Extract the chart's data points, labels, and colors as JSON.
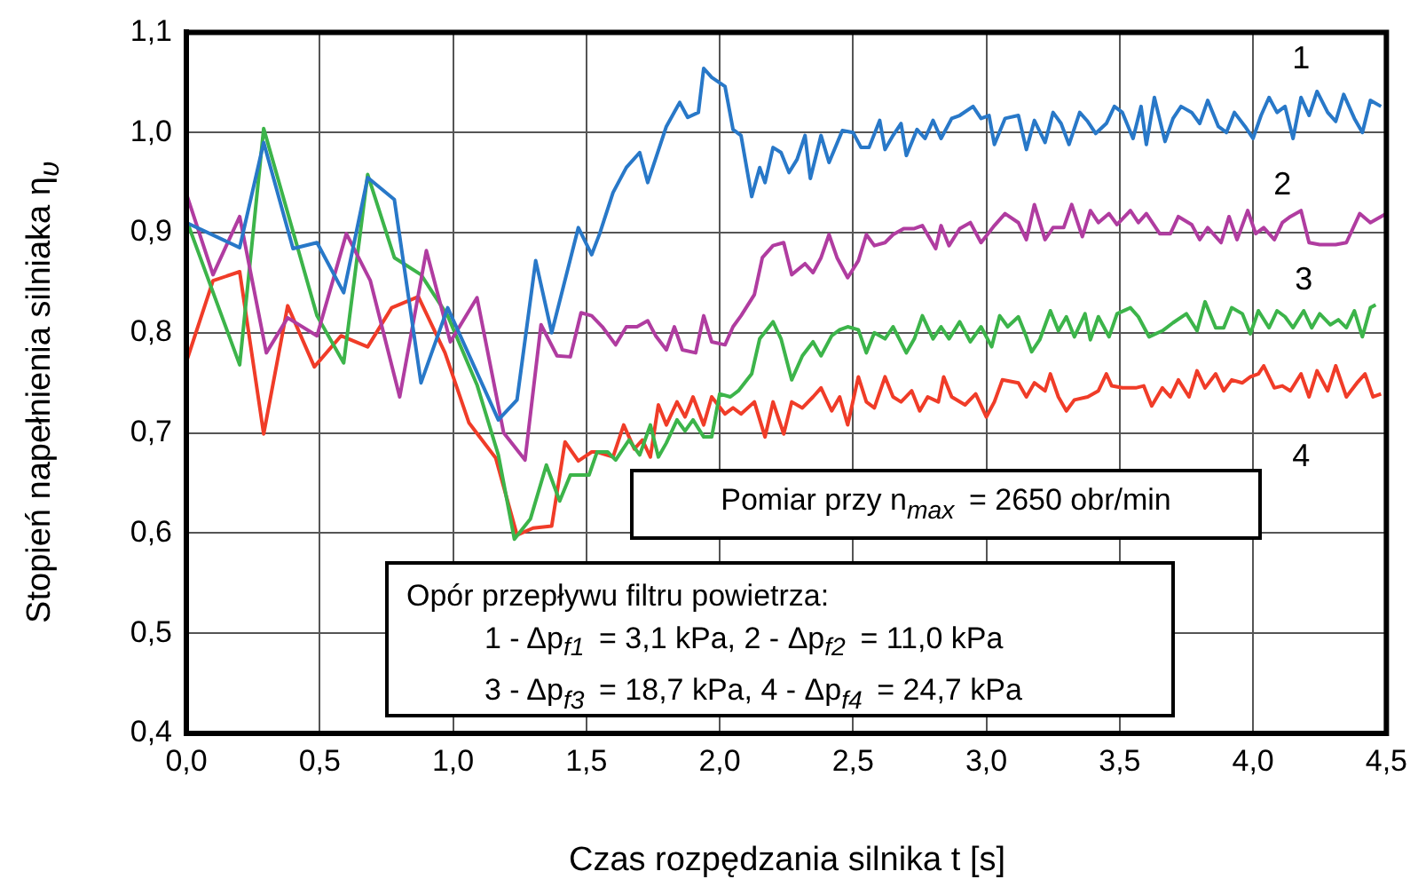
{
  "chart_data": {
    "type": "line",
    "xlabel": "Czas rozpędzania silnika t [s]",
    "ylabel": "Stopień napełnienia silniaka η$_{υ}$",
    "xlim": [
      0,
      4.5
    ],
    "ylim": [
      0.4,
      1.1
    ],
    "xticks": [
      {
        "value": 0,
        "label": "0,0"
      },
      {
        "value": 0.5,
        "label": "0,5"
      },
      {
        "value": 1,
        "label": "1,0"
      },
      {
        "value": 1.5,
        "label": "1,5"
      },
      {
        "value": 2,
        "label": "2,0"
      },
      {
        "value": 2.5,
        "label": "2,5"
      },
      {
        "value": 3,
        "label": "3,0"
      },
      {
        "value": 3.5,
        "label": "3,5"
      },
      {
        "value": 4,
        "label": "4,0"
      },
      {
        "value": 4.5,
        "label": "4,5"
      }
    ],
    "yticks": [
      {
        "value": 0.4,
        "label": "0,4"
      },
      {
        "value": 0.5,
        "label": "0,5"
      },
      {
        "value": 0.6,
        "label": "0,6"
      },
      {
        "value": 0.7,
        "label": "0,7"
      },
      {
        "value": 0.8,
        "label": "0,8"
      },
      {
        "value": 0.9,
        "label": "0,9"
      },
      {
        "value": 1,
        "label": "1,0"
      },
      {
        "value": 1.1,
        "label": "1,1"
      }
    ],
    "grid": true,
    "legend": false,
    "marker": "none",
    "line_style": "solid",
    "series": [
      {
        "name": "1",
        "color": "#2878c8",
        "x": [
          0,
          0.2,
          0.29,
          0.4,
          0.49,
          0.59,
          0.68,
          0.78,
          0.88,
          0.98,
          1.17,
          1.24,
          1.31,
          1.37,
          1.47,
          1.52,
          1.55,
          1.6,
          1.65,
          1.7,
          1.73,
          1.8,
          1.85,
          1.88,
          1.92,
          1.94,
          1.97,
          2.02,
          2.05,
          2.08,
          2.12,
          2.15,
          2.17,
          2.2,
          2.23,
          2.26,
          2.29,
          2.32,
          2.34,
          2.38,
          2.41,
          2.46,
          2.5,
          2.53,
          2.56,
          2.6,
          2.62,
          2.65,
          2.68,
          2.7,
          2.74,
          2.77,
          2.8,
          2.83,
          2.87,
          2.9,
          2.95,
          2.98,
          3.01,
          3.03,
          3.07,
          3.12,
          3.15,
          3.18,
          3.22,
          3.25,
          3.28,
          3.31,
          3.35,
          3.38,
          3.41,
          3.45,
          3.48,
          3.51,
          3.55,
          3.58,
          3.6,
          3.63,
          3.67,
          3.7,
          3.73,
          3.77,
          3.8,
          3.83,
          3.87,
          3.9,
          3.93,
          3.97,
          4.0,
          4.03,
          4.06,
          4.09,
          4.12,
          4.15,
          4.18,
          4.21,
          4.24,
          4.28,
          4.31,
          4.34,
          4.38,
          4.41,
          4.44,
          4.48
        ],
        "values": [
          0.91,
          0.885,
          0.99,
          0.884,
          0.89,
          0.84,
          0.955,
          0.933,
          0.75,
          0.825,
          0.713,
          0.733,
          0.872,
          0.8,
          0.905,
          0.878,
          0.899,
          0.94,
          0.965,
          0.98,
          0.95,
          1.006,
          1.03,
          1.015,
          1.02,
          1.064,
          1.055,
          1.046,
          1.003,
          0.997,
          0.936,
          0.965,
          0.95,
          0.985,
          0.98,
          0.96,
          0.973,
          0.997,
          0.954,
          0.997,
          0.97,
          1.002,
          1.0,
          0.985,
          0.985,
          1.012,
          0.983,
          0.997,
          1.009,
          0.977,
          1.003,
          0.994,
          1.012,
          0.994,
          1.014,
          1.017,
          1.026,
          1.014,
          1.017,
          0.988,
          1.014,
          1.017,
          0.983,
          1.012,
          0.99,
          1.02,
          1.009,
          0.988,
          1.02,
          1.011,
          0.999,
          1.009,
          1.026,
          1.02,
          0.994,
          1.026,
          0.988,
          1.035,
          0.991,
          1.014,
          1.026,
          1.02,
          1.009,
          1.032,
          1.006,
          1.0,
          1.02,
          1.006,
          0.994,
          1.017,
          1.035,
          1.02,
          1.026,
          0.994,
          1.035,
          1.017,
          1.041,
          1.02,
          1.011,
          1.038,
          1.014,
          1.0,
          1.032,
          1.026
        ]
      },
      {
        "name": "2",
        "color": "#b03ca0",
        "x": [
          0,
          0.1,
          0.2,
          0.3,
          0.38,
          0.49,
          0.6,
          0.69,
          0.8,
          0.9,
          0.99,
          1.09,
          1.19,
          1.27,
          1.33,
          1.39,
          1.44,
          1.48,
          1.52,
          1.56,
          1.61,
          1.65,
          1.69,
          1.73,
          1.76,
          1.8,
          1.83,
          1.86,
          1.91,
          1.94,
          1.97,
          2.02,
          2.05,
          2.08,
          2.13,
          2.16,
          2.2,
          2.24,
          2.27,
          2.32,
          2.35,
          2.38,
          2.41,
          2.44,
          2.48,
          2.52,
          2.55,
          2.58,
          2.62,
          2.65,
          2.69,
          2.73,
          2.76,
          2.81,
          2.83,
          2.86,
          2.9,
          2.94,
          2.98,
          3.03,
          3.07,
          3.12,
          3.15,
          3.18,
          3.22,
          3.25,
          3.29,
          3.32,
          3.36,
          3.39,
          3.42,
          3.46,
          3.49,
          3.54,
          3.57,
          3.6,
          3.65,
          3.69,
          3.72,
          3.77,
          3.8,
          3.83,
          3.88,
          3.91,
          3.94,
          3.98,
          4.01,
          4.04,
          4.08,
          4.11,
          4.14,
          4.18,
          4.21,
          4.25,
          4.31,
          4.35,
          4.4,
          4.44,
          4.5
        ],
        "values": [
          0.939,
          0.858,
          0.916,
          0.78,
          0.815,
          0.797,
          0.899,
          0.852,
          0.736,
          0.882,
          0.791,
          0.835,
          0.7,
          0.673,
          0.808,
          0.777,
          0.776,
          0.82,
          0.817,
          0.806,
          0.788,
          0.806,
          0.806,
          0.812,
          0.797,
          0.783,
          0.806,
          0.783,
          0.78,
          0.817,
          0.791,
          0.788,
          0.806,
          0.817,
          0.838,
          0.875,
          0.887,
          0.89,
          0.858,
          0.869,
          0.86,
          0.875,
          0.898,
          0.875,
          0.855,
          0.872,
          0.898,
          0.887,
          0.89,
          0.898,
          0.904,
          0.904,
          0.907,
          0.884,
          0.907,
          0.887,
          0.904,
          0.91,
          0.89,
          0.907,
          0.919,
          0.91,
          0.893,
          0.928,
          0.893,
          0.905,
          0.905,
          0.928,
          0.896,
          0.922,
          0.91,
          0.919,
          0.908,
          0.922,
          0.91,
          0.919,
          0.899,
          0.899,
          0.916,
          0.908,
          0.893,
          0.905,
          0.89,
          0.916,
          0.893,
          0.922,
          0.899,
          0.905,
          0.893,
          0.91,
          0.916,
          0.922,
          0.89,
          0.888,
          0.888,
          0.89,
          0.919,
          0.91,
          0.919
        ]
      },
      {
        "name": "3",
        "color": "#3cb44a",
        "x": [
          0,
          0.2,
          0.29,
          0.49,
          0.59,
          0.68,
          0.78,
          0.88,
          0.98,
          1.09,
          1.17,
          1.23,
          1.29,
          1.35,
          1.4,
          1.44,
          1.49,
          1.51,
          1.54,
          1.58,
          1.61,
          1.66,
          1.7,
          1.72,
          1.74,
          1.77,
          1.8,
          1.84,
          1.87,
          1.9,
          1.94,
          1.97,
          2.0,
          2.04,
          2.07,
          2.12,
          2.15,
          2.2,
          2.23,
          2.27,
          2.31,
          2.35,
          2.38,
          2.42,
          2.45,
          2.48,
          2.52,
          2.55,
          2.58,
          2.62,
          2.65,
          2.7,
          2.73,
          2.76,
          2.8,
          2.83,
          2.86,
          2.9,
          2.94,
          2.98,
          3.02,
          3.05,
          3.08,
          3.12,
          3.15,
          3.17,
          3.2,
          3.24,
          3.27,
          3.3,
          3.33,
          3.37,
          3.39,
          3.42,
          3.46,
          3.49,
          3.54,
          3.57,
          3.61,
          3.66,
          3.7,
          3.75,
          3.79,
          3.82,
          3.86,
          3.89,
          3.92,
          3.96,
          3.99,
          4.02,
          4.06,
          4.09,
          4.12,
          4.15,
          4.19,
          4.22,
          4.25,
          4.29,
          4.32,
          4.35,
          4.38,
          4.41,
          4.44,
          4.46
        ],
        "values": [
          0.913,
          0.768,
          1.004,
          0.817,
          0.77,
          0.958,
          0.875,
          0.858,
          0.817,
          0.748,
          0.678,
          0.594,
          0.614,
          0.668,
          0.632,
          0.658,
          0.658,
          0.658,
          0.681,
          0.681,
          0.673,
          0.693,
          0.678,
          0.693,
          0.708,
          0.676,
          0.69,
          0.713,
          0.702,
          0.713,
          0.696,
          0.696,
          0.739,
          0.736,
          0.742,
          0.759,
          0.794,
          0.811,
          0.794,
          0.753,
          0.777,
          0.791,
          0.777,
          0.797,
          0.803,
          0.806,
          0.803,
          0.78,
          0.8,
          0.794,
          0.806,
          0.78,
          0.794,
          0.817,
          0.794,
          0.806,
          0.794,
          0.811,
          0.791,
          0.806,
          0.786,
          0.817,
          0.806,
          0.816,
          0.796,
          0.781,
          0.793,
          0.822,
          0.802,
          0.816,
          0.796,
          0.819,
          0.793,
          0.816,
          0.796,
          0.819,
          0.825,
          0.816,
          0.796,
          0.802,
          0.81,
          0.819,
          0.802,
          0.831,
          0.805,
          0.805,
          0.825,
          0.819,
          0.799,
          0.822,
          0.805,
          0.822,
          0.816,
          0.805,
          0.822,
          0.805,
          0.819,
          0.808,
          0.813,
          0.805,
          0.822,
          0.796,
          0.825,
          0.828
        ]
      },
      {
        "name": "4",
        "color": "#f03c28",
        "x": [
          0,
          0.1,
          0.2,
          0.29,
          0.38,
          0.48,
          0.58,
          0.68,
          0.77,
          0.87,
          0.97,
          1.06,
          1.16,
          1.24,
          1.3,
          1.37,
          1.42,
          1.47,
          1.52,
          1.54,
          1.6,
          1.64,
          1.68,
          1.71,
          1.74,
          1.77,
          1.8,
          1.84,
          1.87,
          1.9,
          1.94,
          1.97,
          2.02,
          2.05,
          2.08,
          2.13,
          2.17,
          2.2,
          2.24,
          2.27,
          2.31,
          2.35,
          2.38,
          2.42,
          2.45,
          2.48,
          2.52,
          2.55,
          2.58,
          2.62,
          2.65,
          2.68,
          2.72,
          2.75,
          2.78,
          2.82,
          2.84,
          2.87,
          2.92,
          2.96,
          3.0,
          3.03,
          3.06,
          3.12,
          3.15,
          3.18,
          3.22,
          3.24,
          3.27,
          3.3,
          3.33,
          3.38,
          3.42,
          3.45,
          3.47,
          3.51,
          3.56,
          3.59,
          3.62,
          3.66,
          3.69,
          3.72,
          3.76,
          3.79,
          3.82,
          3.86,
          3.89,
          3.92,
          3.96,
          3.99,
          4.02,
          4.04,
          4.08,
          4.11,
          4.14,
          4.18,
          4.21,
          4.24,
          4.28,
          4.31,
          4.35,
          4.39,
          4.42,
          4.45,
          4.48
        ],
        "values": [
          0.771,
          0.852,
          0.861,
          0.699,
          0.827,
          0.766,
          0.797,
          0.786,
          0.825,
          0.836,
          0.78,
          0.71,
          0.675,
          0.598,
          0.605,
          0.607,
          0.691,
          0.672,
          0.681,
          0.681,
          0.676,
          0.708,
          0.684,
          0.693,
          0.676,
          0.728,
          0.708,
          0.731,
          0.716,
          0.736,
          0.708,
          0.736,
          0.719,
          0.725,
          0.719,
          0.731,
          0.696,
          0.731,
          0.699,
          0.731,
          0.725,
          0.736,
          0.745,
          0.722,
          0.736,
          0.708,
          0.756,
          0.731,
          0.725,
          0.756,
          0.736,
          0.731,
          0.742,
          0.722,
          0.736,
          0.731,
          0.756,
          0.736,
          0.728,
          0.739,
          0.716,
          0.731,
          0.753,
          0.75,
          0.736,
          0.75,
          0.742,
          0.759,
          0.736,
          0.722,
          0.733,
          0.736,
          0.742,
          0.759,
          0.747,
          0.745,
          0.745,
          0.747,
          0.727,
          0.745,
          0.736,
          0.753,
          0.736,
          0.762,
          0.745,
          0.759,
          0.742,
          0.753,
          0.75,
          0.756,
          0.759,
          0.767,
          0.745,
          0.747,
          0.742,
          0.759,
          0.736,
          0.762,
          0.742,
          0.767,
          0.736,
          0.75,
          0.759,
          0.736,
          0.739
        ]
      }
    ],
    "annotations": [
      "Pomiar przy n$_{max}$ = 2650 obr/min",
      "Opór przepływu filtru powietrza:",
      "1 - Δp$_{f1}$ = 3,1 kPa, 2 - Δp$_{f2}$ = 11,0 kPa",
      "3 - Δp$_{f3}$ = 18,7 kPa,  4 - Δp$_{f4}$ = 24,7 kPa"
    ]
  }
}
